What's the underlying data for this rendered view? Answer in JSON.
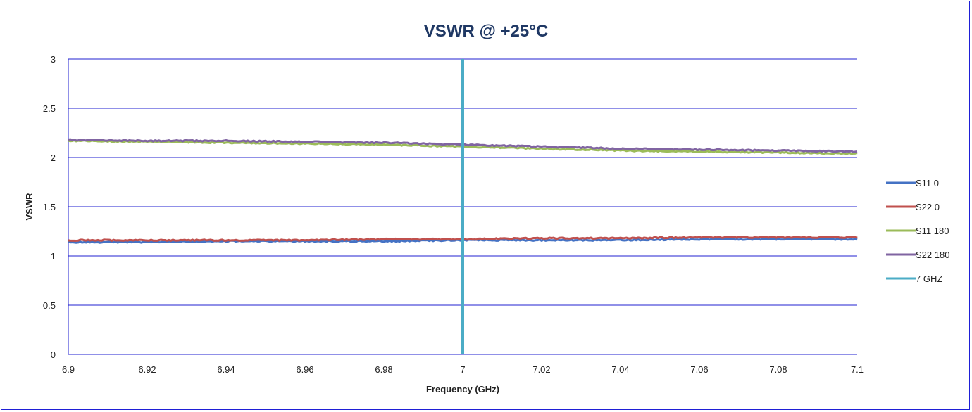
{
  "chart_data": {
    "type": "line",
    "title": "VSWR @ +25°C",
    "xlabel": "Frequency (GHz)",
    "ylabel": "VSWR",
    "xlim": [
      6.9,
      7.1
    ],
    "ylim": [
      0,
      3
    ],
    "x_ticks": [
      "6.9",
      "6.92",
      "6.94",
      "6.96",
      "6.98",
      "7",
      "7.02",
      "7.04",
      "7.06",
      "7.08",
      "7.1"
    ],
    "y_ticks": [
      "0",
      "0.5",
      "1",
      "1.5",
      "2",
      "2.5",
      "3"
    ],
    "grid": "horizontal",
    "legend_position": "right",
    "series": [
      {
        "name": "S11 0",
        "color": "#4472c4",
        "x": [
          6.9,
          6.92,
          6.94,
          6.96,
          6.98,
          7.0,
          7.02,
          7.04,
          7.06,
          7.08,
          7.1
        ],
        "values": [
          1.14,
          1.14,
          1.15,
          1.15,
          1.15,
          1.16,
          1.16,
          1.16,
          1.17,
          1.17,
          1.17
        ]
      },
      {
        "name": "S22 0",
        "color": "#c0504d",
        "x": [
          6.9,
          6.92,
          6.94,
          6.96,
          6.98,
          7.0,
          7.02,
          7.04,
          7.06,
          7.08,
          7.1
        ],
        "values": [
          1.16,
          1.16,
          1.16,
          1.16,
          1.17,
          1.17,
          1.18,
          1.18,
          1.19,
          1.19,
          1.19
        ]
      },
      {
        "name": "S11 180",
        "color": "#9bbb59",
        "x": [
          6.9,
          6.92,
          6.94,
          6.96,
          6.98,
          7.0,
          7.02,
          7.04,
          7.06,
          7.08,
          7.1
        ],
        "values": [
          2.17,
          2.16,
          2.15,
          2.14,
          2.13,
          2.11,
          2.09,
          2.07,
          2.06,
          2.05,
          2.04
        ]
      },
      {
        "name": "S22 180",
        "color": "#8064a2",
        "x": [
          6.9,
          6.92,
          6.94,
          6.96,
          6.98,
          7.0,
          7.02,
          7.04,
          7.06,
          7.08,
          7.1
        ],
        "values": [
          2.18,
          2.17,
          2.17,
          2.16,
          2.15,
          2.13,
          2.11,
          2.09,
          2.08,
          2.07,
          2.06
        ]
      },
      {
        "name": "7 GHZ",
        "color": "#4bacc6",
        "x": [
          7.0,
          7.0
        ],
        "values": [
          0,
          3
        ]
      }
    ]
  }
}
